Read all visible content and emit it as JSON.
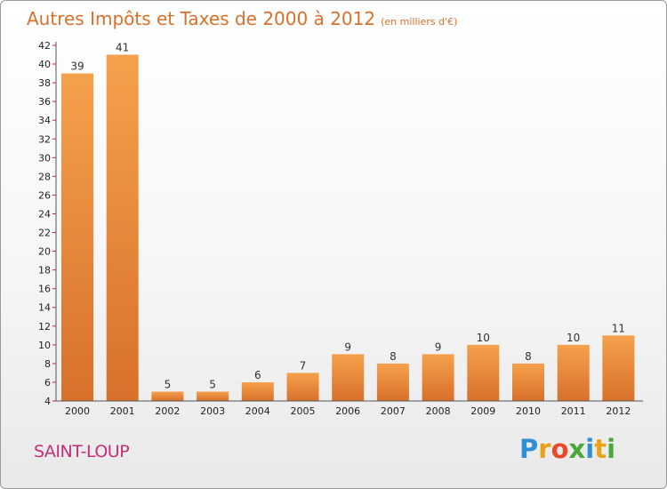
{
  "chart_data": {
    "type": "bar",
    "title": "Autres Impôts et Taxes de 2000 à 2012",
    "subtitle": "(en milliers d'€)",
    "categories": [
      "2000",
      "2001",
      "2002",
      "2003",
      "2004",
      "2005",
      "2006",
      "2007",
      "2008",
      "2009",
      "2010",
      "2011",
      "2012"
    ],
    "values": [
      39,
      41,
      5,
      5,
      6,
      7,
      9,
      8,
      9,
      10,
      8,
      10,
      11
    ],
    "xlabel": "",
    "ylabel": "",
    "ylim": [
      4,
      42
    ],
    "yticks": [
      4,
      6,
      8,
      10,
      12,
      14,
      16,
      18,
      20,
      22,
      24,
      26,
      28,
      30,
      32,
      34,
      36,
      38,
      40,
      42
    ],
    "grid": false
  },
  "commune": "SAINT-LOUP",
  "logo": {
    "text": "Proxiti"
  },
  "colors": {
    "bar_light": "#f5a14c",
    "bar_dark": "#d8702a",
    "title": "#d8702a",
    "commune": "#c2307a",
    "axis_tick_red": "#cc2222"
  }
}
